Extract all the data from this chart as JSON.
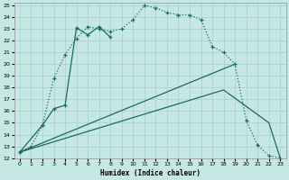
{
  "xlabel": "Humidex (Indice chaleur)",
  "bg_color": "#c5e8e5",
  "grid_color": "#a8cece",
  "line_color": "#1a6b60",
  "xlim": [
    -0.5,
    23.5
  ],
  "ylim": [
    12,
    25.2
  ],
  "xticks": [
    0,
    1,
    2,
    3,
    4,
    5,
    6,
    7,
    8,
    9,
    10,
    11,
    12,
    13,
    14,
    15,
    16,
    17,
    18,
    19,
    20,
    21,
    22,
    23
  ],
  "yticks": [
    12,
    13,
    14,
    15,
    16,
    17,
    18,
    19,
    20,
    21,
    22,
    23,
    24,
    25
  ],
  "curve1_x": [
    0,
    1,
    2,
    3,
    4,
    5,
    6,
    7,
    8,
    9,
    10,
    11,
    12,
    13,
    14,
    15,
    16,
    17,
    18,
    19,
    20,
    21,
    22,
    23
  ],
  "curve1_y": [
    12.5,
    13.0,
    14.8,
    18.8,
    20.8,
    22.2,
    23.2,
    23.0,
    22.8,
    23.0,
    23.8,
    25.0,
    24.8,
    24.4,
    24.2,
    24.2,
    23.8,
    21.5,
    21.0,
    20.0,
    15.2,
    13.1,
    12.2,
    12.0
  ],
  "curve2_x": [
    0,
    2,
    3,
    4,
    5,
    6,
    7,
    8
  ],
  "curve2_y": [
    12.5,
    14.8,
    16.2,
    16.5,
    23.1,
    22.5,
    23.2,
    22.3
  ],
  "line3_x": [
    0,
    19
  ],
  "line3_y": [
    12.5,
    20.0
  ],
  "line4_x": [
    0,
    18,
    22,
    23
  ],
  "line4_y": [
    12.5,
    17.8,
    15.0,
    12.0
  ]
}
